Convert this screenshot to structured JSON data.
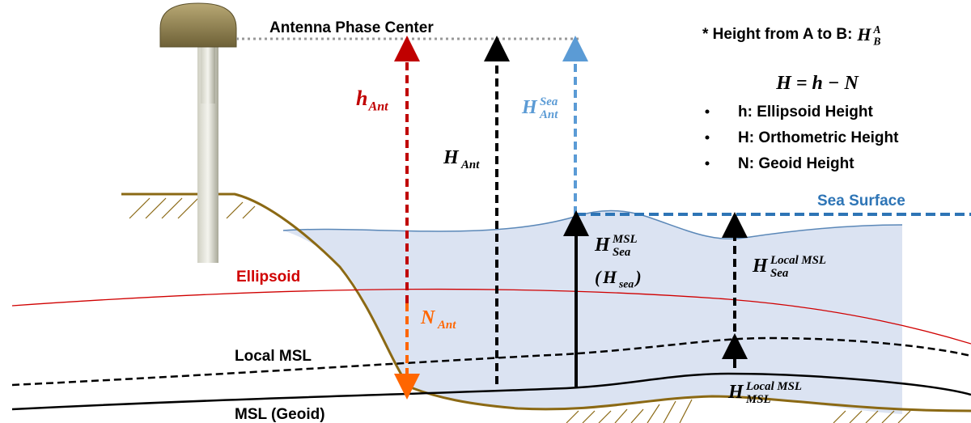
{
  "labels": {
    "antenna_phase_center": "Antenna Phase Center",
    "sea_surface": "Sea Surface",
    "ellipsoid": "Ellipsoid",
    "local_msl": "Local MSL",
    "msl_geoid": "MSL (Geoid)"
  },
  "notation": {
    "prefix": "* Height from A to B:",
    "base": "H",
    "sup": "A",
    "sub": "B"
  },
  "formula": "H = h − N",
  "definitions": [
    "h: Ellipsoid Height",
    "H: Orthometric Height",
    "N: Geoid Height"
  ],
  "heights": {
    "h_ant": {
      "base": "h",
      "sub": "Ant"
    },
    "h_ant_ortho": {
      "base": "H",
      "sub": "Ant"
    },
    "h_ant_sea": {
      "base": "H",
      "sup": "Sea",
      "sub": "Ant"
    },
    "h_sea_msl": {
      "base": "H",
      "sup": "MSL",
      "sub": "Sea"
    },
    "h_sea_alt": {
      "open": "(",
      "base": "H",
      "sub": "sea",
      "close": ")"
    },
    "h_sea_local": {
      "base": "H",
      "sup": "Local MSL",
      "sub": "Sea"
    },
    "n_ant": {
      "base": "N",
      "sub": "Ant"
    },
    "h_msl_local": {
      "base": "H",
      "sup": "Local MSL",
      "sub": "MSL"
    }
  }
}
